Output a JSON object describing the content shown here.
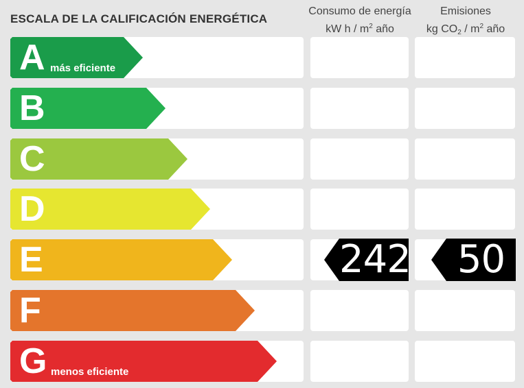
{
  "title": "ESCALA DE LA CALIFICACIÓN ENERGÉTICA",
  "columns": {
    "consumo": {
      "line1": "Consumo de energía",
      "line2a": "kW h  / m",
      "line2sup": "2",
      "line2b": " año"
    },
    "emisiones": {
      "line1": "Emisiones",
      "line2a": "kg CO",
      "line2sub": "2",
      "line2b": "  / m",
      "line2sup": "2",
      "line2c": " año"
    }
  },
  "ratings": [
    {
      "letter": "A",
      "label": "más eficiente",
      "color": "#1a9c4a"
    },
    {
      "letter": "B",
      "label": "",
      "color": "#24b04f"
    },
    {
      "letter": "C",
      "label": "",
      "color": "#9bc83f"
    },
    {
      "letter": "D",
      "label": "",
      "color": "#e6e630"
    },
    {
      "letter": "E",
      "label": "",
      "color": "#f0b51c"
    },
    {
      "letter": "F",
      "label": "",
      "color": "#e4752c"
    },
    {
      "letter": "G",
      "label": "menos eficiente",
      "color": "#e32b2e"
    }
  ],
  "result": {
    "rating": "E",
    "consumo_value": "242",
    "emisiones_value": "50",
    "indicator_color": "#000000"
  }
}
